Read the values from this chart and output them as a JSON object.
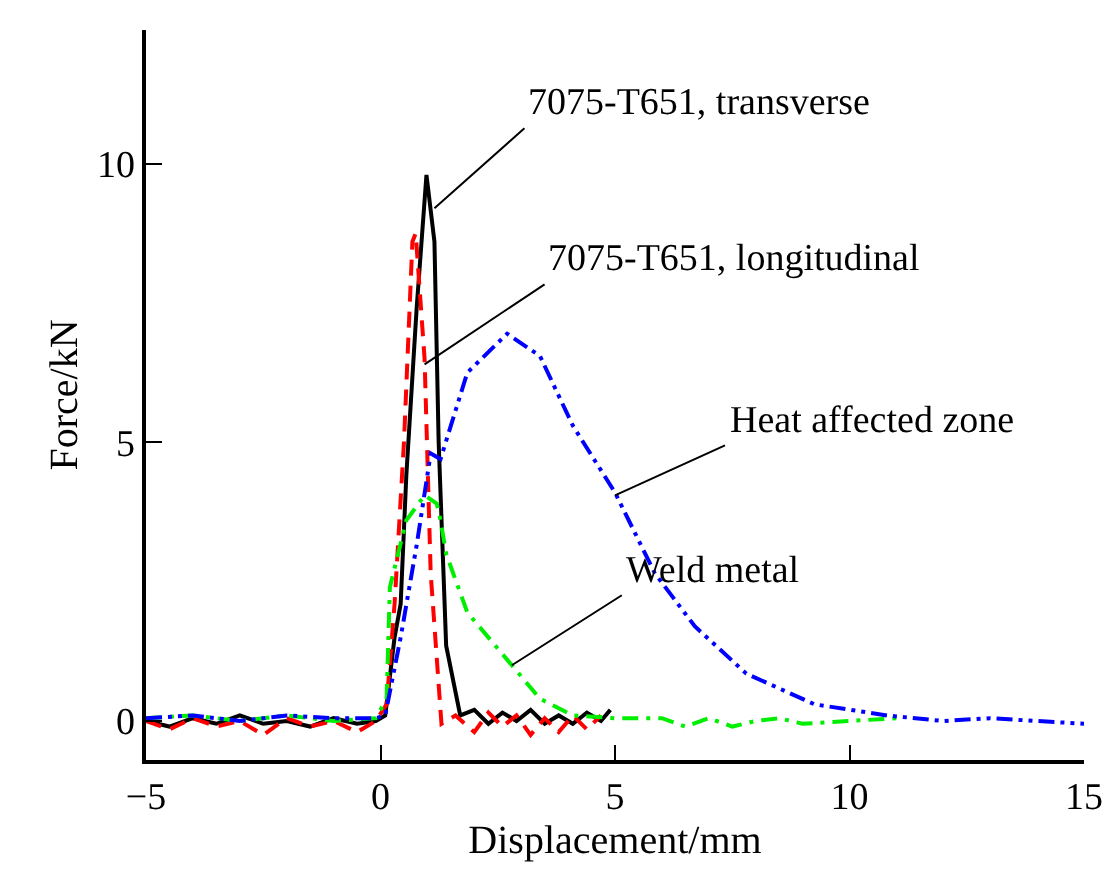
{
  "chart_data": {
    "type": "line",
    "xlabel": "Displacement/mm",
    "ylabel": "Force/kN",
    "xlim": [
      -5,
      15
    ],
    "xticks": [
      -5,
      0,
      5,
      10,
      15
    ],
    "ylim": [
      -0.7,
      12.4
    ],
    "yticks": [
      0,
      5,
      10
    ],
    "marker": "none",
    "series": [
      {
        "color": "#000000",
        "line_style": "solid",
        "x": [
          -5,
          -4.5,
          -4,
          -3.5,
          -3,
          -2.5,
          -2,
          -1.5,
          -1,
          -0.5,
          -0.1,
          0.1,
          0.3,
          0.43,
          0.55,
          0.77,
          0.98,
          1.15,
          1.24,
          1.4,
          1.7,
          2,
          2.3,
          2.6,
          2.9,
          3.2,
          3.5,
          3.8,
          4.1,
          4.4,
          4.7,
          4.9
        ],
        "values": [
          0,
          -0.1,
          0.05,
          -0.05,
          0.1,
          -0.05,
          0,
          -0.1,
          0.05,
          -0.05,
          0,
          0.1,
          1.5,
          2.1,
          4.4,
          7.4,
          9.8,
          8.6,
          5,
          1.35,
          0.1,
          0.2,
          -0.05,
          0.15,
          0,
          0.2,
          -0.05,
          0.1,
          -0.05,
          0.15,
          0,
          0.2
        ]
      },
      {
        "color": "#ff0000",
        "line_style": "dashed",
        "x": [
          -5,
          -4.5,
          -4,
          -3.5,
          -3,
          -2.5,
          -2,
          -1.5,
          -1,
          -0.5,
          -0.1,
          0.13,
          0.3,
          0.5,
          0.68,
          0.75,
          0.94,
          1.07,
          1.3,
          1.6,
          2,
          2.3,
          2.6,
          2.9,
          3.2,
          3.5,
          3.8,
          4.1,
          4.4,
          4.7
        ],
        "values": [
          0,
          -0.15,
          0.05,
          -0.1,
          0,
          -0.25,
          0.05,
          -0.1,
          0,
          -0.2,
          0,
          0.3,
          2.1,
          5,
          8.6,
          8.75,
          6.5,
          2.65,
          -0.05,
          0.1,
          -0.2,
          0.15,
          -0.1,
          0.1,
          -0.25,
          0.05,
          -0.2,
          0.1,
          -0.15,
          0.1
        ]
      },
      {
        "color": "#00ee00",
        "line_style": "dashdot",
        "x": [
          -5,
          -4,
          -3,
          -2,
          -1,
          -0.1,
          0.13,
          0.2,
          0.55,
          0.94,
          1.2,
          1.28,
          1.4,
          1.85,
          2.8,
          3.4,
          4.1,
          5,
          6,
          6.5,
          7,
          7.5,
          8,
          8.5,
          9,
          10,
          11
        ],
        "values": [
          0.05,
          0.1,
          0,
          0.1,
          0,
          0.05,
          0.4,
          2.4,
          3.6,
          4.05,
          3.9,
          3.6,
          3,
          1.95,
          1,
          0.4,
          0.1,
          0.05,
          0.05,
          -0.1,
          0.05,
          -0.1,
          0,
          0.05,
          -0.05,
          0,
          0.05
        ]
      },
      {
        "color": "#0000ff",
        "line_style": "dashdotdot",
        "x": [
          -5,
          -4,
          -3,
          -2,
          -1,
          -0.1,
          0.1,
          0.43,
          0.77,
          1.07,
          1.28,
          1.85,
          2.7,
          3.4,
          4.1,
          5,
          5.85,
          6.7,
          7.8,
          9.25,
          10.8,
          12,
          13,
          14,
          15
        ],
        "values": [
          0.05,
          0.1,
          0,
          0.1,
          0.05,
          0.05,
          0.1,
          1.5,
          3.15,
          4.8,
          4.7,
          6.25,
          6.95,
          6.55,
          5.3,
          4.1,
          2.65,
          1.7,
          0.85,
          0.3,
          0.1,
          0,
          0.05,
          0,
          -0.05
        ]
      }
    ],
    "annotations": [
      {
        "text": "7075-T651, transverse",
        "x": 1.15,
        "y": 9.2
      },
      {
        "text": "7075-T651, longitudinal",
        "x": 0.94,
        "y": 6.4
      },
      {
        "text": "Heat affected zone",
        "x": 5,
        "y": 4.05
      },
      {
        "text": "Weld metal",
        "x": 2.8,
        "y": 1
      }
    ]
  }
}
